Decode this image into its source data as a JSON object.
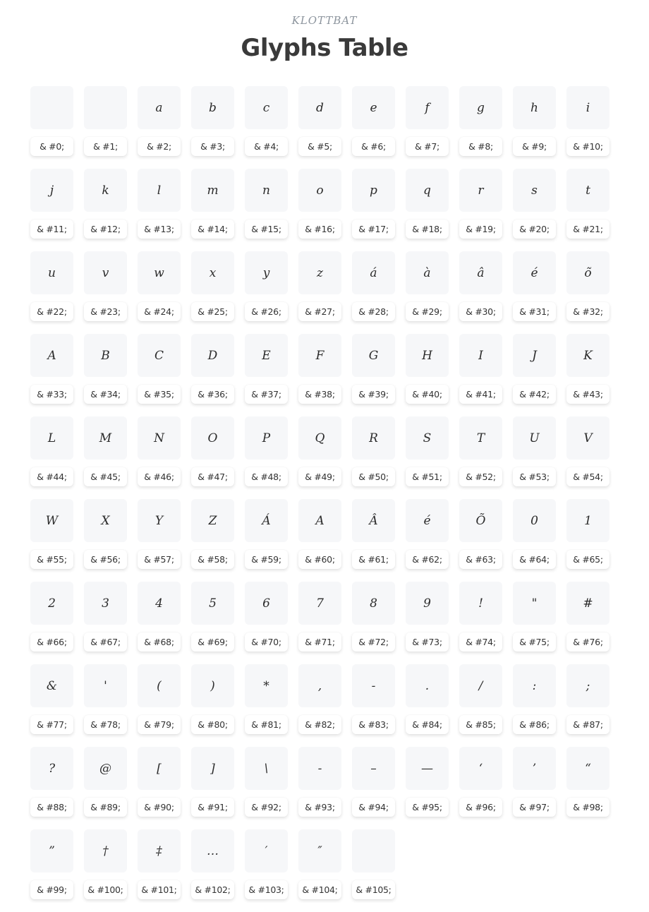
{
  "header": {
    "subtitle": "KLOTTBAT",
    "title": "Glyphs Table"
  },
  "glyphs": [
    {
      "char": "",
      "code": "& #0;"
    },
    {
      "char": "",
      "code": "& #1;"
    },
    {
      "char": "a",
      "code": "& #2;"
    },
    {
      "char": "b",
      "code": "& #3;"
    },
    {
      "char": "c",
      "code": "& #4;"
    },
    {
      "char": "d",
      "code": "& #5;"
    },
    {
      "char": "e",
      "code": "& #6;"
    },
    {
      "char": "f",
      "code": "& #7;"
    },
    {
      "char": "g",
      "code": "& #8;"
    },
    {
      "char": "h",
      "code": "& #9;"
    },
    {
      "char": "i",
      "code": "& #10;"
    },
    {
      "char": "j",
      "code": "& #11;"
    },
    {
      "char": "k",
      "code": "& #12;"
    },
    {
      "char": "l",
      "code": "& #13;"
    },
    {
      "char": "m",
      "code": "& #14;"
    },
    {
      "char": "n",
      "code": "& #15;"
    },
    {
      "char": "o",
      "code": "& #16;"
    },
    {
      "char": "p",
      "code": "& #17;"
    },
    {
      "char": "q",
      "code": "& #18;"
    },
    {
      "char": "r",
      "code": "& #19;"
    },
    {
      "char": "s",
      "code": "& #20;"
    },
    {
      "char": "t",
      "code": "& #21;"
    },
    {
      "char": "u",
      "code": "& #22;"
    },
    {
      "char": "v",
      "code": "& #23;"
    },
    {
      "char": "w",
      "code": "& #24;"
    },
    {
      "char": "x",
      "code": "& #25;"
    },
    {
      "char": "y",
      "code": "& #26;"
    },
    {
      "char": "z",
      "code": "& #27;"
    },
    {
      "char": "á",
      "code": "& #28;"
    },
    {
      "char": "à",
      "code": "& #29;"
    },
    {
      "char": "â",
      "code": "& #30;"
    },
    {
      "char": "é",
      "code": "& #31;"
    },
    {
      "char": "õ",
      "code": "& #32;"
    },
    {
      "char": "A",
      "code": "& #33;"
    },
    {
      "char": "B",
      "code": "& #34;"
    },
    {
      "char": "C",
      "code": "& #35;"
    },
    {
      "char": "D",
      "code": "& #36;"
    },
    {
      "char": "E",
      "code": "& #37;"
    },
    {
      "char": "F",
      "code": "& #38;"
    },
    {
      "char": "G",
      "code": "& #39;"
    },
    {
      "char": "H",
      "code": "& #40;"
    },
    {
      "char": "I",
      "code": "& #41;"
    },
    {
      "char": "J",
      "code": "& #42;"
    },
    {
      "char": "K",
      "code": "& #43;"
    },
    {
      "char": "L",
      "code": "& #44;"
    },
    {
      "char": "M",
      "code": "& #45;"
    },
    {
      "char": "N",
      "code": "& #46;"
    },
    {
      "char": "O",
      "code": "& #47;"
    },
    {
      "char": "P",
      "code": "& #48;"
    },
    {
      "char": "Q",
      "code": "& #49;"
    },
    {
      "char": "R",
      "code": "& #50;"
    },
    {
      "char": "S",
      "code": "& #51;"
    },
    {
      "char": "T",
      "code": "& #52;"
    },
    {
      "char": "U",
      "code": "& #53;"
    },
    {
      "char": "V",
      "code": "& #54;"
    },
    {
      "char": "W",
      "code": "& #55;"
    },
    {
      "char": "X",
      "code": "& #56;"
    },
    {
      "char": "Y",
      "code": "& #57;"
    },
    {
      "char": "Z",
      "code": "& #58;"
    },
    {
      "char": "Á",
      "code": "& #59;"
    },
    {
      "char": "A",
      "code": "& #60;"
    },
    {
      "char": "Â",
      "code": "& #61;"
    },
    {
      "char": "é",
      "code": "& #62;"
    },
    {
      "char": "Õ",
      "code": "& #63;"
    },
    {
      "char": "0",
      "code": "& #64;"
    },
    {
      "char": "1",
      "code": "& #65;"
    },
    {
      "char": "2",
      "code": "& #66;"
    },
    {
      "char": "3",
      "code": "& #67;"
    },
    {
      "char": "4",
      "code": "& #68;"
    },
    {
      "char": "5",
      "code": "& #69;"
    },
    {
      "char": "6",
      "code": "& #70;"
    },
    {
      "char": "7",
      "code": "& #71;"
    },
    {
      "char": "8",
      "code": "& #72;"
    },
    {
      "char": "9",
      "code": "& #73;"
    },
    {
      "char": "!",
      "code": "& #74;"
    },
    {
      "char": "\"",
      "code": "& #75;"
    },
    {
      "char": "#",
      "code": "& #76;"
    },
    {
      "char": "&",
      "code": "& #77;"
    },
    {
      "char": "'",
      "code": "& #78;"
    },
    {
      "char": "(",
      "code": "& #79;"
    },
    {
      "char": ")",
      "code": "& #80;"
    },
    {
      "char": "*",
      "code": "& #81;"
    },
    {
      "char": ",",
      "code": "& #82;"
    },
    {
      "char": "-",
      "code": "& #83;"
    },
    {
      "char": ".",
      "code": "& #84;"
    },
    {
      "char": "/",
      "code": "& #85;"
    },
    {
      "char": ":",
      "code": "& #86;"
    },
    {
      "char": ";",
      "code": "& #87;"
    },
    {
      "char": "?",
      "code": "& #88;"
    },
    {
      "char": "@",
      "code": "& #89;"
    },
    {
      "char": "[",
      "code": "& #90;"
    },
    {
      "char": "]",
      "code": "& #91;"
    },
    {
      "char": "\\",
      "code": "& #92;"
    },
    {
      "char": "-",
      "code": "& #93;"
    },
    {
      "char": "–",
      "code": "& #94;"
    },
    {
      "char": "—",
      "code": "& #95;"
    },
    {
      "char": "‘",
      "code": "& #96;"
    },
    {
      "char": "’",
      "code": "& #97;"
    },
    {
      "char": "“",
      "code": "& #98;"
    },
    {
      "char": "”",
      "code": "& #99;"
    },
    {
      "char": "†",
      "code": "& #100;"
    },
    {
      "char": "‡",
      "code": "& #101;"
    },
    {
      "char": "…",
      "code": "& #102;"
    },
    {
      "char": "′",
      "code": "& #103;"
    },
    {
      "char": "″",
      "code": "& #104;"
    },
    {
      "code": "& #105;"
    }
  ]
}
